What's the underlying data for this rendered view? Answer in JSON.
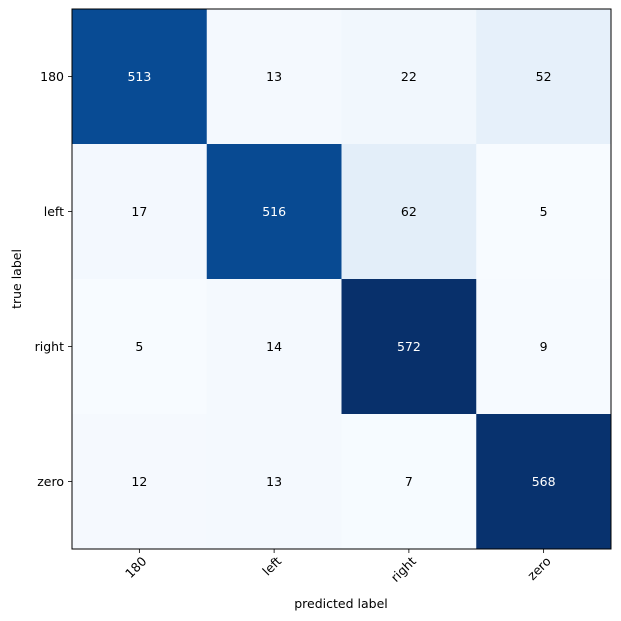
{
  "chart_data": {
    "type": "heatmap",
    "title": "",
    "xlabel": "predicted label",
    "ylabel": "true label",
    "x_categories": [
      "180",
      "left",
      "right",
      "zero"
    ],
    "y_categories": [
      "180",
      "left",
      "right",
      "zero"
    ],
    "values": [
      [
        513,
        13,
        22,
        52
      ],
      [
        17,
        516,
        62,
        5
      ],
      [
        5,
        14,
        572,
        9
      ],
      [
        12,
        13,
        7,
        568
      ]
    ],
    "colormap": "Blues",
    "x_tick_rotation_deg": 45,
    "grid": false,
    "legend": "none"
  }
}
